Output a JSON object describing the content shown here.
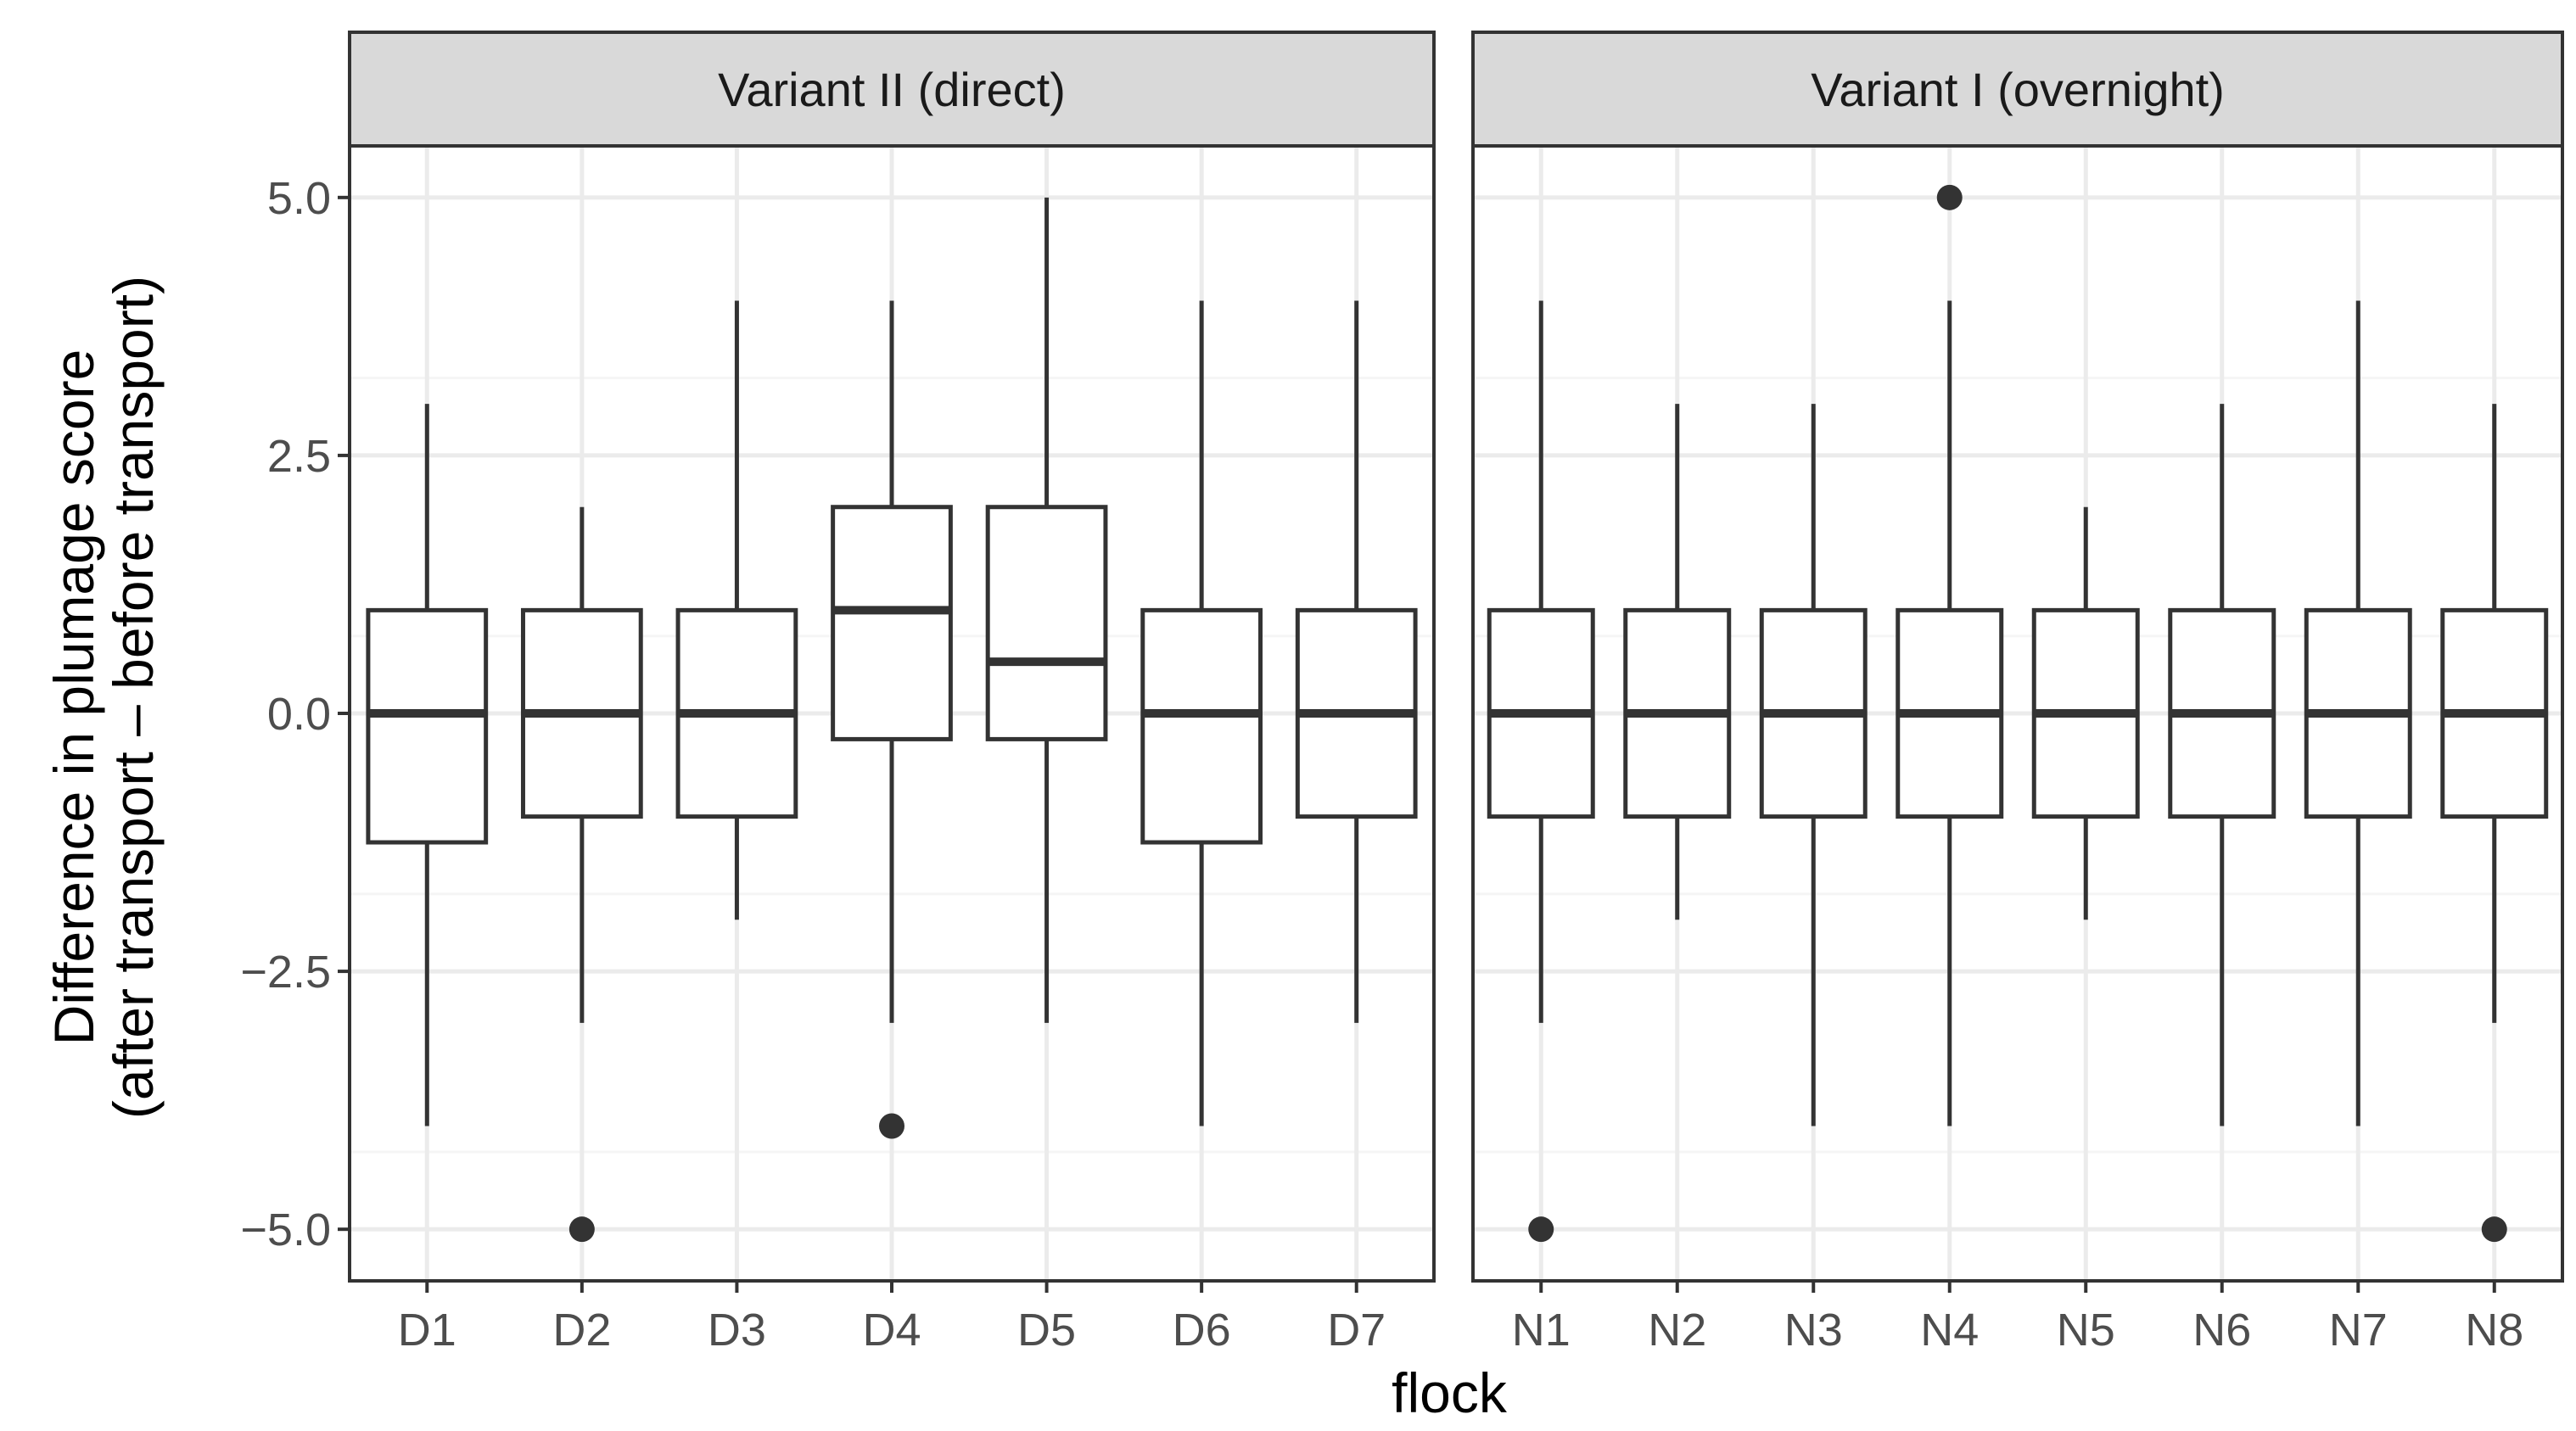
{
  "chart_data": {
    "type": "boxplot",
    "xlabel": "flock",
    "ylabel_lines": [
      "Difference in plumage score",
      "(after transport – before transport)"
    ],
    "ylim": [
      -5.5,
      5.5
    ],
    "y_ticks": [
      5.0,
      2.5,
      0.0,
      -2.5,
      -5.0
    ],
    "y_tick_labels": [
      "5.0",
      "2.5",
      "0.0",
      "−2.5",
      "−5.0"
    ],
    "grid": true,
    "panels": [
      {
        "strip_label": "Variant II (direct)",
        "categories": [
          "D1",
          "D2",
          "D3",
          "D4",
          "D5",
          "D6",
          "D7"
        ],
        "boxes": [
          {
            "q1": -1.25,
            "median": 0,
            "q3": 1,
            "whisker_low": -4,
            "whisker_high": 3,
            "outliers": []
          },
          {
            "q1": -1,
            "median": 0,
            "q3": 1,
            "whisker_low": -3,
            "whisker_high": 2,
            "outliers": [
              -5
            ]
          },
          {
            "q1": -1,
            "median": 0,
            "q3": 1,
            "whisker_low": -2,
            "whisker_high": 4,
            "outliers": []
          },
          {
            "q1": -0.25,
            "median": 1,
            "q3": 2,
            "whisker_low": -3,
            "whisker_high": 4,
            "outliers": [
              -4
            ]
          },
          {
            "q1": -0.25,
            "median": 0.5,
            "q3": 2,
            "whisker_low": -3,
            "whisker_high": 5,
            "outliers": []
          },
          {
            "q1": -1.25,
            "median": 0,
            "q3": 1,
            "whisker_low": -4,
            "whisker_high": 4,
            "outliers": []
          },
          {
            "q1": -1,
            "median": 0,
            "q3": 1,
            "whisker_low": -3,
            "whisker_high": 4,
            "outliers": []
          }
        ]
      },
      {
        "strip_label": "Variant I (overnight)",
        "categories": [
          "N1",
          "N2",
          "N3",
          "N4",
          "N5",
          "N6",
          "N7",
          "N8"
        ],
        "boxes": [
          {
            "q1": -1,
            "median": 0,
            "q3": 1,
            "whisker_low": -3,
            "whisker_high": 4,
            "outliers": [
              -5
            ]
          },
          {
            "q1": -1,
            "median": 0,
            "q3": 1,
            "whisker_low": -2,
            "whisker_high": 3,
            "outliers": []
          },
          {
            "q1": -1,
            "median": 0,
            "q3": 1,
            "whisker_low": -4,
            "whisker_high": 3,
            "outliers": []
          },
          {
            "q1": -1,
            "median": 0,
            "q3": 1,
            "whisker_low": -4,
            "whisker_high": 4,
            "outliers": [
              5
            ]
          },
          {
            "q1": -1,
            "median": 0,
            "q3": 1,
            "whisker_low": -2,
            "whisker_high": 2,
            "outliers": []
          },
          {
            "q1": -1,
            "median": 0,
            "q3": 1,
            "whisker_low": -4,
            "whisker_high": 3,
            "outliers": []
          },
          {
            "q1": -1,
            "median": 0,
            "q3": 1,
            "whisker_low": -4,
            "whisker_high": 4,
            "outliers": []
          },
          {
            "q1": -1,
            "median": 0,
            "q3": 1,
            "whisker_low": -3,
            "whisker_high": 3,
            "outliers": [
              -5
            ]
          }
        ]
      }
    ],
    "colors": {
      "box_line": "#333333",
      "box_fill": "#ffffff",
      "strip_fill": "#d9d9d9",
      "panel_border": "#333333",
      "grid_major": "#ebebeb",
      "grid_minor": "#f5f5f5",
      "outlier": "#333333"
    }
  }
}
